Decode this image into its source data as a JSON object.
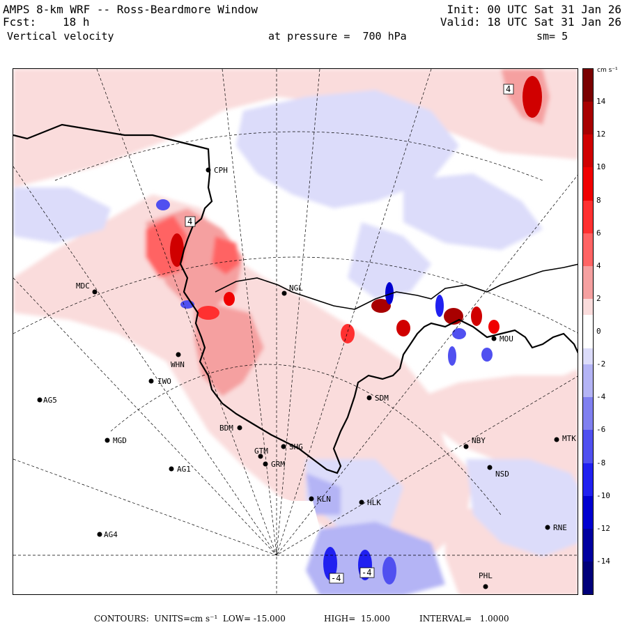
{
  "header": {
    "title": "AMPS 8-km WRF -- Ross-Beardmore Window",
    "forecast_label": "Fcst:",
    "forecast_hours": "18 h",
    "variable": "Vertical velocity",
    "init": "Init: 00 UTC Sat 31 Jan 26",
    "valid": "Valid: 18 UTC Sat 31 Jan 26",
    "level": "at pressure =  700 hPa",
    "smoothing": "sm= 5"
  },
  "colorbar": {
    "unit": "cm s⁻¹",
    "range": [
      -16,
      16
    ],
    "tick_labels": [
      "14",
      "12",
      "10",
      "8",
      "6",
      "4",
      "2",
      "0",
      "-2",
      "-4",
      "-6",
      "-8",
      "-10",
      "-12",
      "-14"
    ],
    "tick_values": [
      14,
      12,
      10,
      8,
      6,
      4,
      2,
      0,
      -2,
      -4,
      -6,
      -8,
      -10,
      -12,
      -14
    ],
    "levels": [
      {
        "from": 14,
        "to": 16,
        "color": "#7a0000"
      },
      {
        "from": 12,
        "to": 14,
        "color": "#a80000"
      },
      {
        "from": 10,
        "to": 12,
        "color": "#d00000"
      },
      {
        "from": 8,
        "to": 10,
        "color": "#f00000"
      },
      {
        "from": 6,
        "to": 8,
        "color": "#ff3030"
      },
      {
        "from": 4,
        "to": 6,
        "color": "#ff6464"
      },
      {
        "from": 2,
        "to": 4,
        "color": "#f5a0a0"
      },
      {
        "from": 1,
        "to": 2,
        "color": "#fadcdc"
      },
      {
        "from": -1,
        "to": 1,
        "color": "#ffffff"
      },
      {
        "from": -2,
        "to": -1,
        "color": "#dcdcfa"
      },
      {
        "from": -4,
        "to": -2,
        "color": "#b4b4f5"
      },
      {
        "from": -6,
        "to": -4,
        "color": "#8080f0"
      },
      {
        "from": -8,
        "to": -6,
        "color": "#5050f0"
      },
      {
        "from": -10,
        "to": -8,
        "color": "#2020f0"
      },
      {
        "from": -12,
        "to": -10,
        "color": "#0000d0"
      },
      {
        "from": -14,
        "to": -12,
        "color": "#0000a0"
      },
      {
        "from": -16,
        "to": -14,
        "color": "#00007a"
      }
    ]
  },
  "stations": [
    {
      "code": "CPH",
      "label": "CPH"
    },
    {
      "code": "MDC",
      "label": "MDC"
    },
    {
      "code": "NGL",
      "label": "NGL"
    },
    {
      "code": "MOU",
      "label": "MOU"
    },
    {
      "code": "WHN",
      "label": "WHN"
    },
    {
      "code": "IWO",
      "label": "IWO"
    },
    {
      "code": "AG5",
      "label": "AG5"
    },
    {
      "code": "SDM",
      "label": "SDM"
    },
    {
      "code": "BDM",
      "label": "BDM"
    },
    {
      "code": "MGD",
      "label": "MGD"
    },
    {
      "code": "SHG",
      "label": "SHG"
    },
    {
      "code": "GTM",
      "label": "GTM"
    },
    {
      "code": "GRM",
      "label": "GRM"
    },
    {
      "code": "NBY",
      "label": "NBY"
    },
    {
      "code": "MTK",
      "label": "MTK"
    },
    {
      "code": "AG1",
      "label": "AG1"
    },
    {
      "code": "NSD",
      "label": "NSD"
    },
    {
      "code": "KLN",
      "label": "KLN"
    },
    {
      "code": "HLK",
      "label": "HLK"
    },
    {
      "code": "AG4",
      "label": "AG4"
    },
    {
      "code": "RNE",
      "label": "RNE"
    },
    {
      "code": "PHL",
      "label": "PHL"
    }
  ],
  "contour_labels": [
    "4",
    "4",
    "-4",
    "-4"
  ],
  "footer": {
    "contours": "CONTOURS:  UNITS=cm s⁻¹  LOW= -15.000",
    "high": "HIGH=  15.000",
    "interval": "INTERVAL=   1.0000"
  }
}
